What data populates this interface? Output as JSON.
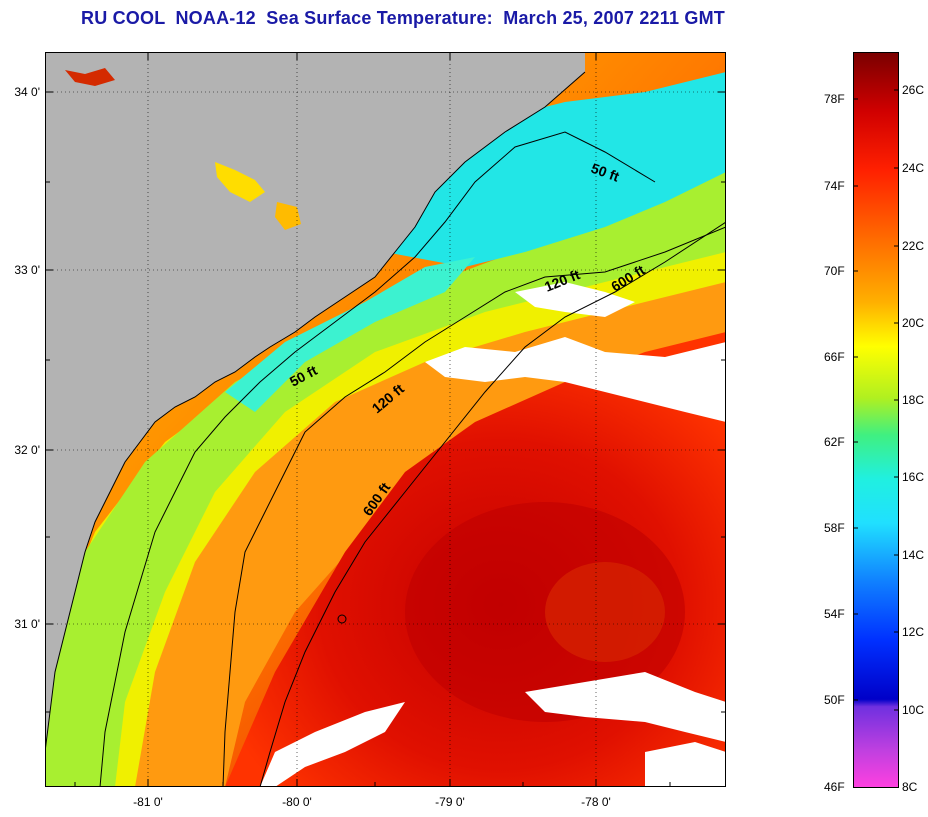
{
  "title": "RU COOL  NOAA-12  Sea Surface Temperature:  March 25, 2007 2211 GMT",
  "map": {
    "latitude_labels": [
      "34 0'",
      "33 0'",
      "32 0'",
      "31 0'"
    ],
    "longitude_labels": [
      "-81 0'",
      "-80 0'",
      "-79 0'",
      "-78 0'"
    ],
    "contour_labels": [
      "50 ft",
      "120 ft",
      "600 ft",
      "50 ft",
      "120 ft",
      "600 ft"
    ],
    "colors": {
      "land": "#b3b3b3",
      "cloud": "#ffffff",
      "warm_core": "#d00000",
      "shelf_cold": "#22e6e6"
    }
  },
  "colorbar": {
    "fahrenheit_labels": [
      "78F",
      "74F",
      "70F",
      "66F",
      "62F",
      "58F",
      "54F",
      "50F",
      "46F"
    ],
    "celsius_labels": [
      "26C",
      "24C",
      "22C",
      "20C",
      "18C",
      "16C",
      "14C",
      "12C",
      "10C",
      "8C"
    ]
  }
}
